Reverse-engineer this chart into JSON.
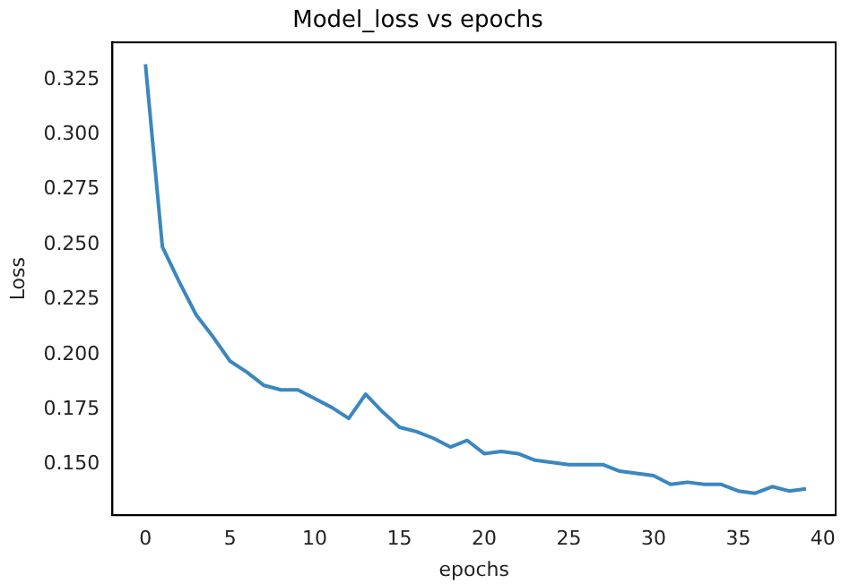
{
  "chart_data": {
    "type": "line",
    "title": "Model_loss vs epochs",
    "xlabel": "epochs",
    "ylabel": "Loss",
    "x": [
      0,
      1,
      2,
      3,
      4,
      5,
      6,
      7,
      8,
      9,
      10,
      11,
      12,
      13,
      14,
      15,
      16,
      17,
      18,
      19,
      20,
      21,
      22,
      23,
      24,
      25,
      26,
      27,
      28,
      29,
      30,
      31,
      32,
      33,
      34,
      35,
      36,
      37,
      38,
      39
    ],
    "series": [
      {
        "color": "#3a87c0",
        "values": [
          0.332,
          0.249,
          0.233,
          0.218,
          0.208,
          0.197,
          0.192,
          0.186,
          0.184,
          0.184,
          0.18,
          0.176,
          0.171,
          0.182,
          0.174,
          0.167,
          0.165,
          0.162,
          0.158,
          0.161,
          0.155,
          0.156,
          0.155,
          0.152,
          0.151,
          0.15,
          0.15,
          0.15,
          0.147,
          0.146,
          0.145,
          0.141,
          0.142,
          0.141,
          0.141,
          0.138,
          0.137,
          0.14,
          0.138,
          0.139
        ]
      }
    ],
    "xlim": [
      -1.95,
      40.75
    ],
    "xticks": [
      0,
      5,
      10,
      15,
      20,
      25,
      30,
      35,
      40
    ],
    "ylim": [
      0.127,
      0.342
    ],
    "yticks": [
      {
        "value": 0.15,
        "label": "0.150"
      },
      0.175,
      {
        "value": 0.2,
        "label": "0.200"
      },
      0.225,
      {
        "value": 0.25,
        "label": "0.250"
      },
      0.275,
      {
        "value": 0.3,
        "label": "0.300"
      },
      0.325
    ],
    "grid": false,
    "legend": false,
    "marker": "none",
    "line_style": "solid"
  }
}
